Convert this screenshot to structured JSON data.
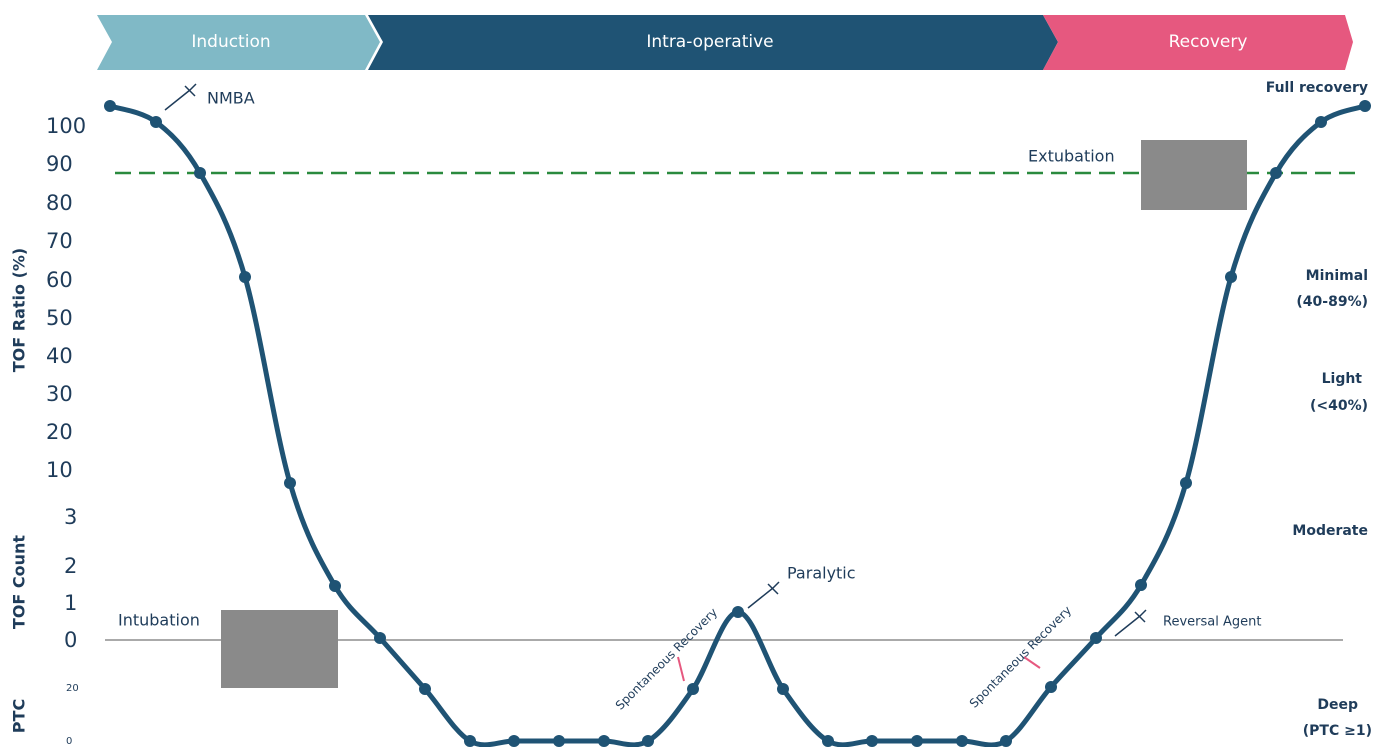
{
  "phases": [
    "Induction",
    "Intra-operative",
    "Recovery"
  ],
  "axis_titles": {
    "tof_ratio": "TOF Ratio (%)",
    "tof_count": "TOF Count",
    "ptc": "PTC"
  },
  "tof_ratio_ticks": [
    "100",
    "90",
    "80",
    "70",
    "60",
    "50",
    "40",
    "30",
    "20",
    "10"
  ],
  "tof_count_ticks": [
    "3",
    "2",
    "1",
    "0"
  ],
  "ptc_ticks": [
    "20",
    "0"
  ],
  "levels": {
    "full": "Full recovery",
    "minimal": "Minimal",
    "minimal_range": "(40-89%)",
    "light": "Light",
    "light_range": "(<40%)",
    "moderate": "Moderate",
    "deep": "Deep",
    "deep_range": "(PTC ≥1)"
  },
  "annotations": {
    "nmba": "NMBA",
    "extubation": "Extubation",
    "intubation": "Intubation",
    "paralytic": "Paralytic",
    "reversal": "Reversal Agent",
    "spont_1": "Spontaneous Recovery",
    "spont_2": "Spontaneous Recovery"
  }
}
